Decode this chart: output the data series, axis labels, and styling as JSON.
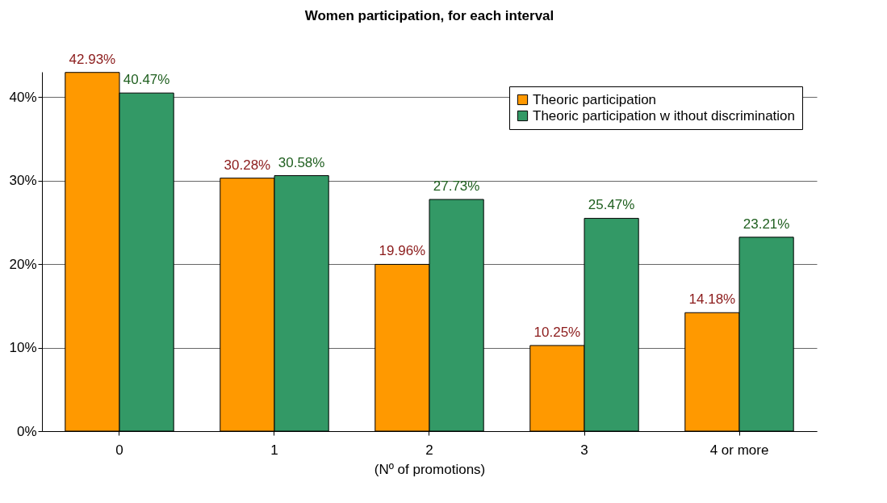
{
  "chart_data": {
    "type": "bar",
    "title": "Women participation, for each interval",
    "xlabel": "(Nº of promotions)",
    "categories": [
      "0",
      "1",
      "2",
      "3",
      "4 or more"
    ],
    "series": [
      {
        "name": "Theoric participation",
        "color": "#ff9900",
        "values": [
          42.93,
          30.28,
          19.96,
          10.25,
          14.18
        ],
        "value_labels": [
          "42.93%",
          "30.28%",
          "19.96%",
          "10.25%",
          "14.18%"
        ]
      },
      {
        "name": "Theoric participation w ithout discrimination",
        "color": "#339966",
        "values": [
          40.47,
          30.58,
          27.73,
          25.47,
          23.21
        ],
        "value_labels": [
          "40.47%",
          "30.58%",
          "27.73%",
          "25.47%",
          "23.21%"
        ]
      }
    ],
    "ylim": [
      0,
      43
    ],
    "yticks": [
      {
        "value": 0,
        "label": "0%"
      },
      {
        "value": 10,
        "label": "10%"
      },
      {
        "value": 20,
        "label": "20%"
      },
      {
        "value": 30,
        "label": "30%"
      },
      {
        "value": 40,
        "label": "40%"
      }
    ],
    "grid": "y",
    "legend": "top right"
  }
}
